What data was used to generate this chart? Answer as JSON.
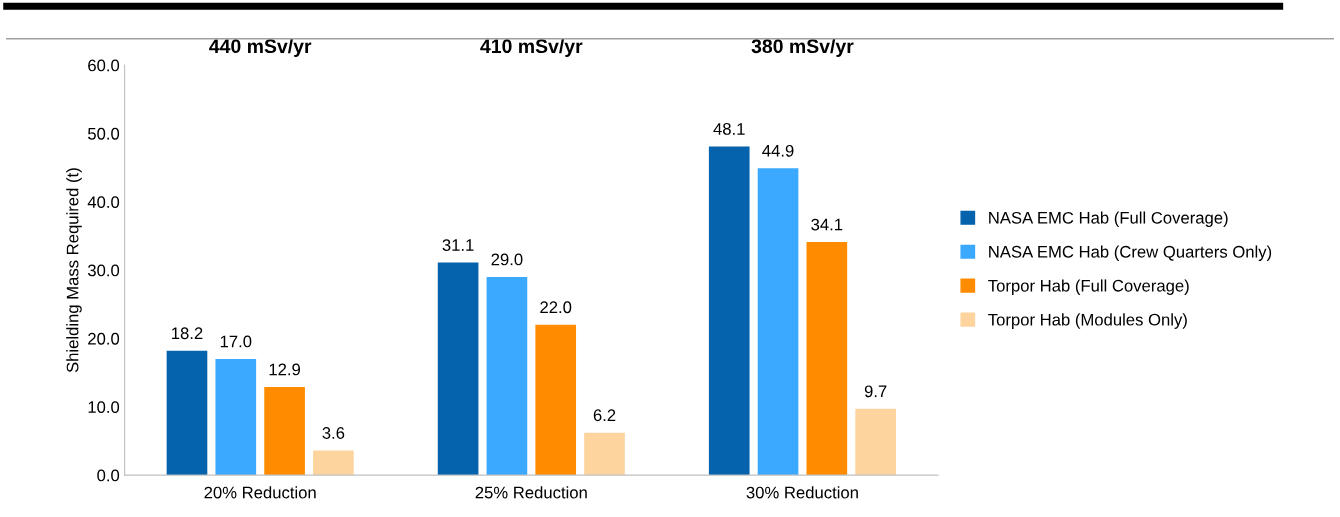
{
  "chart_data": {
    "type": "bar",
    "ylabel": "Shielding Mass Required (t)",
    "categories": [
      "20% Reduction",
      "25% Reduction",
      "30% Reduction"
    ],
    "series": [
      {
        "name": "NASA EMC Hab (Full Coverage)",
        "color": "#0563ad",
        "values": [
          18.2,
          31.1,
          48.1
        ],
        "value_labels": [
          "18.2",
          "31.1",
          "48.1"
        ]
      },
      {
        "name": "NASA EMC Hab (Crew Quarters Only)",
        "color": "#3aa9ff",
        "values": [
          17.0,
          29.0,
          44.9
        ],
        "value_labels": [
          "17.0",
          "29.0",
          "44.9"
        ]
      },
      {
        "name": "Torpor Hab (Full Coverage)",
        "color": "#ff8c00",
        "values": [
          12.9,
          22.0,
          34.1
        ],
        "value_labels": [
          "12.9",
          "22.0",
          "34.1"
        ]
      },
      {
        "name": "Torpor Hab (Modules Only)",
        "color": "#fdd49e",
        "values": [
          3.6,
          6.2,
          9.7
        ],
        "value_labels": [
          "3.6",
          "6.2",
          "9.7"
        ]
      }
    ],
    "ylim": [
      0,
      60
    ],
    "yticks": [
      {
        "value": 0,
        "label": "0.0"
      },
      {
        "value": 10,
        "label": "10.0"
      },
      {
        "value": 20,
        "label": "20.0"
      },
      {
        "value": 30,
        "label": "30.0"
      },
      {
        "value": 40,
        "label": "40.0"
      },
      {
        "value": 50,
        "label": "50.0"
      },
      {
        "value": 60,
        "label": "60.0"
      }
    ],
    "annotations": [
      "440 mSv/yr",
      "410 mSv/yr",
      "380 mSv/yr"
    ],
    "grid": false,
    "legend": "right"
  }
}
